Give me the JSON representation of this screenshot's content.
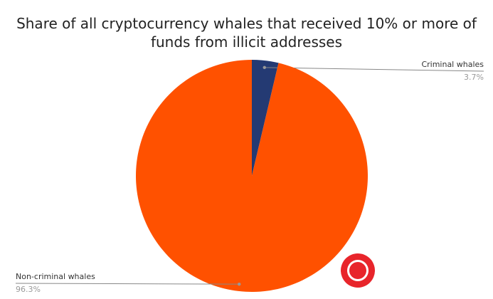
{
  "chart_data": {
    "type": "pie",
    "title": "Share of all cryptocurrency whales that received 10% or more of funds from illicit addresses",
    "categories": [
      "Criminal whales",
      "Non-criminal whales"
    ],
    "values": [
      3.7,
      96.3
    ],
    "value_labels": [
      "3.7%",
      "96.3%"
    ],
    "colors": [
      "#243a73",
      "#ff5100"
    ]
  }
}
